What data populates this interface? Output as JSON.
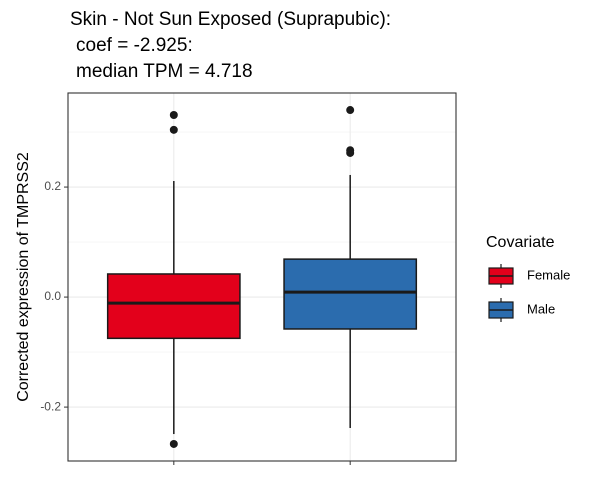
{
  "chart_data": {
    "type": "box",
    "title": [
      "Skin - Not Sun Exposed (Suprapubic):",
      "coef = -2.925:",
      "median TPM = 4.718"
    ],
    "y_label": "Corrected expression of TMPRSS2",
    "categories": [
      null,
      null
    ],
    "legend_title": "Covariate",
    "series": [
      {
        "name": "Female",
        "color": "#e3001b",
        "low": -0.249,
        "q1": -0.075,
        "median": -0.011,
        "q3": 0.042,
        "high": 0.211,
        "outliers": [
          0.331,
          0.304,
          -0.267
        ]
      },
      {
        "name": "Male",
        "color": "#2b6cae",
        "low": -0.238,
        "q1": -0.058,
        "median": 0.009,
        "q3": 0.069,
        "high": 0.222,
        "outliers": [
          0.34,
          0.267,
          0.262
        ]
      }
    ],
    "ylim": [
      -0.298,
      0.371
    ],
    "yticks": [
      {
        "value": -0.2,
        "label": "-0.2"
      },
      {
        "value": 0,
        "label": "0.0"
      },
      {
        "value": 0.2,
        "label": "0.2"
      }
    ],
    "yminor": [
      -0.1,
      0.1,
      0.3
    ],
    "grid": true
  }
}
